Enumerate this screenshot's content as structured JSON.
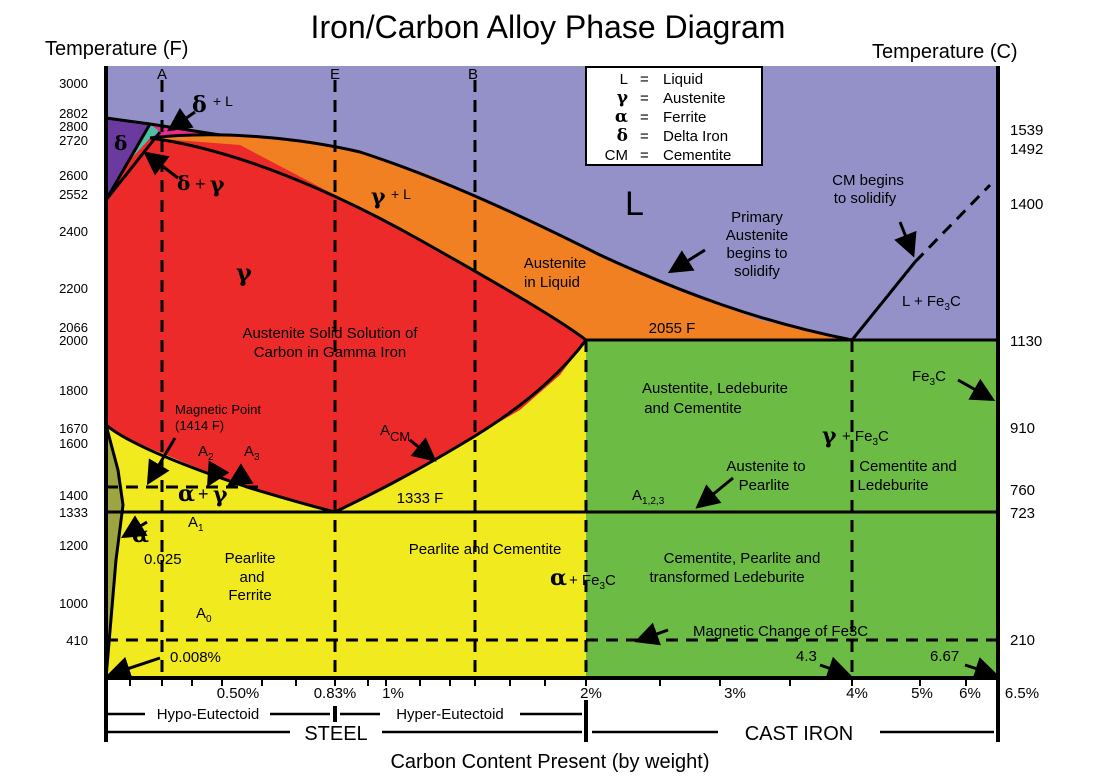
{
  "title": "Iron/Carbon Alloy Phase Diagram",
  "left_axis_title": "Temperature (F)",
  "right_axis_title": "Temperature (C)",
  "x_axis_title": "Carbon Content Present (by weight)",
  "left_ticks": [
    "3000",
    "2802",
    "2800",
    "2720",
    "2600",
    "2552",
    "2400",
    "2200",
    "2066",
    "2000",
    "1800",
    "1670",
    "1600",
    "1400",
    "1333",
    "1200",
    "1000",
    "410"
  ],
  "right_ticks": [
    "1539",
    "1492",
    "1400",
    "1130",
    "910",
    "760",
    "723",
    "210"
  ],
  "x_ticks": [
    "0.50%",
    "0.83%",
    "1%",
    "2%",
    "3%",
    "4%",
    "5%",
    "6%",
    "6.5%"
  ],
  "top_markers": [
    "A",
    "E",
    "B"
  ],
  "legend": [
    {
      "sym": "L",
      "eq": "=",
      "text": "Liquid"
    },
    {
      "sym": "γ",
      "eq": "=",
      "text": "Austenite"
    },
    {
      "sym": "α",
      "eq": "=",
      "text": "Ferrite"
    },
    {
      "sym": "δ",
      "eq": "=",
      "text": "Delta Iron"
    },
    {
      "sym": "CM",
      "eq": "=",
      "text": "Cementite"
    }
  ],
  "regions": {
    "liquid": "L",
    "delta_liquid": "+ L",
    "delta_gamma": "+",
    "gamma_liquid": "+ L",
    "austenite_in_liquid_1": "Austenite",
    "austenite_in_liquid_2": "in Liquid",
    "gamma": "γ",
    "solid_solution_1": "Austenite Solid Solution of",
    "solid_solution_2": "Carbon in Gamma Iron",
    "primary_austenite": [
      "Primary",
      "Austenite",
      "begins to",
      "solidify"
    ],
    "cm_solidify": [
      "CM begins",
      "to solidify"
    ],
    "l_fe3c": "L + Fe",
    "ledeburite_1": "Austentite, Ledeburite",
    "ledeburite_2": "and Cementite",
    "austenite_pearlite_1": "Austenite to",
    "austenite_pearlite_2": "Pearlite",
    "cementite_ledeburite_1": "Cementite and",
    "cementite_ledeburite_2": "Ledeburite",
    "gamma_fe3c": "+ Fe",
    "fe3c_label": "Fe",
    "pearlite_ferrite": [
      "Pearlite",
      "and",
      "Ferrite"
    ],
    "pearlite_cementite": "Pearlite and Cementite",
    "alpha_fe3c": "+ Fe",
    "cpl_1": "Cementite, Pearlite and",
    "cpl_2": "transformed Ledeburite",
    "magnetic_point_1": "Magnetic Point",
    "magnetic_point_2": "(1414 F)",
    "alpha_gamma": "+",
    "t2055": "2055 F",
    "t1333": "1333 F",
    "a123": "A",
    "a123_sub": "1,2,3",
    "a2": "A",
    "a3": "A",
    "a1": "A",
    "a0": "A",
    "acm": "A",
    "acm_sub": "CM",
    "c0025": "0.025",
    "c0008": "0.008%",
    "c43": "4.3",
    "c667": "6.67",
    "magnetic_change": "Magnetic Change of Fe3C",
    "sub3": "3",
    "sub2": "2",
    "sub1": "1",
    "sub0": "0"
  },
  "bottom": {
    "hypo": "Hypo-Eutectoid",
    "hyper": "Hyper-Eutectoid",
    "steel": "STEEL",
    "cast_iron": "CAST IRON"
  },
  "colors": {
    "liquid": "#9391c8",
    "austenite": "#ec2a2a",
    "austenite_liquid": "#f08022",
    "ferrite_pearlite": "#f1ea1e",
    "cast_iron": "#6cbb45",
    "delta": "#ec2a8e",
    "delta_region": "#6a3a9f",
    "delta_gamma": "#4dbfa5",
    "alpha": "#9da540"
  }
}
